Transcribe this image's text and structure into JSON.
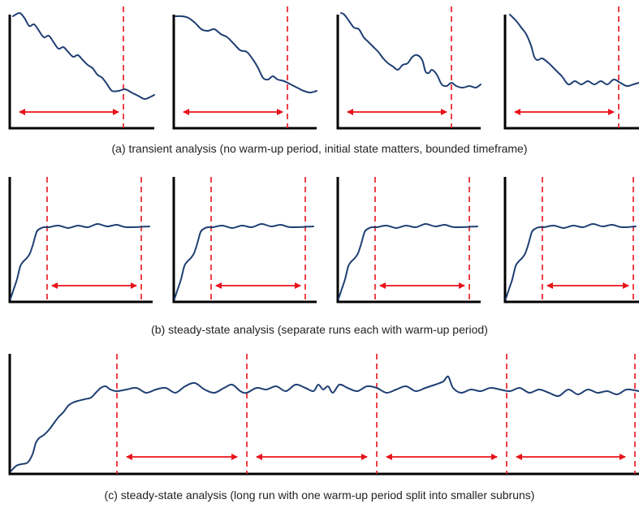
{
  "captions": {
    "a": "(a) transient analysis (no warm-up period, initial state matters, bounded timeframe)",
    "b": "(b) steady-state analysis (separate runs each with warm-up period)",
    "c": "(c) steady-state analysis (long run with one warm-up period split into smaller subruns)"
  },
  "colors": {
    "curve": "#1f3f73",
    "marker": "#e8131a",
    "axis": "#000000",
    "text": "#222222"
  },
  "panels": {
    "a": {
      "count": 4,
      "kind": "transient",
      "warmup_markers": 0,
      "measurement_windows": 1
    },
    "b": {
      "count": 4,
      "kind": "steady-state separate runs",
      "warmup_markers": 1,
      "measurement_windows": 1
    },
    "c": {
      "count": 1,
      "kind": "steady-state long run",
      "warmup_markers": 1,
      "measurement_windows": 4
    }
  }
}
